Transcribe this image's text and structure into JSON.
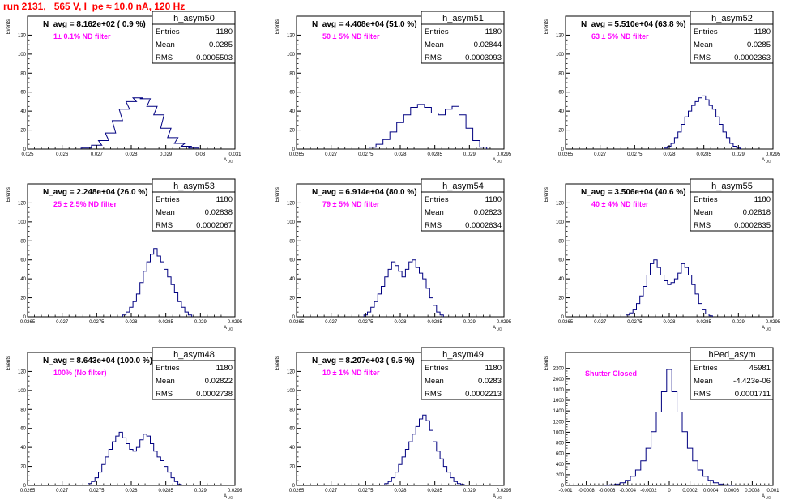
{
  "title": "run 2131,   565 V, I_pe ≈ 10.0 nA, 120 Hz",
  "ylabel": "Events",
  "xlabel": "A",
  "xlabel_sub": "UD",
  "chart_data": [
    {
      "type": "bar",
      "hist_name": "h_asym50",
      "navg": "N_avg = 8.162e+02 ( 0.9 %)",
      "filter": "1± 0.1% ND filter",
      "stats": [
        {
          "label": "Entries",
          "value": "1180"
        },
        {
          "label": "Mean",
          "value": "0.0285"
        },
        {
          "label": "RMS",
          "value": "0.0005503"
        }
      ],
      "xlim": [
        0.025,
        0.031
      ],
      "ylim": [
        0,
        140
      ],
      "xticks": [
        0.025,
        0.026,
        0.027,
        0.028,
        0.029,
        0.03,
        0.031
      ],
      "xtick_labels": [
        "0.025",
        "0.026",
        "0.027",
        "0.028",
        "0.029",
        "0.03",
        "0.031"
      ],
      "yticks": [
        0,
        20,
        40,
        60,
        80,
        100,
        120
      ],
      "ytick_labels": [
        "0",
        "20",
        "40",
        "60",
        "80",
        "100",
        "120"
      ],
      "x": [
        0.0267,
        0.027,
        0.0272,
        0.0274,
        0.0276,
        0.0278,
        0.028,
        0.0282,
        0.0284,
        0.0286,
        0.0288,
        0.029,
        0.0292,
        0.0294,
        0.0296,
        0.0298
      ],
      "values": [
        1,
        4,
        9,
        17,
        30,
        42,
        50,
        54,
        53,
        45,
        36,
        22,
        12,
        6,
        3,
        1
      ]
    },
    {
      "type": "bar",
      "hist_name": "h_asym51",
      "navg": "N_avg = 4.408e+04 (51.0 %)",
      "filter": "50 ± 5% ND filter",
      "stats": [
        {
          "label": "Entries",
          "value": "1180"
        },
        {
          "label": "Mean",
          "value": "0.02844"
        },
        {
          "label": "RMS",
          "value": "0.0003093"
        }
      ],
      "xlim": [
        0.0265,
        0.0295
      ],
      "ylim": [
        0,
        140
      ],
      "xticks": [
        0.0265,
        0.027,
        0.0275,
        0.028,
        0.0285,
        0.029,
        0.0295
      ],
      "xtick_labels": [
        "0.0265",
        "0.027",
        "0.0275",
        "0.028",
        "0.0285",
        "0.029",
        "0.0295"
      ],
      "yticks": [
        0,
        20,
        40,
        60,
        80,
        100,
        120
      ],
      "ytick_labels": [
        "0",
        "20",
        "40",
        "60",
        "80",
        "100",
        "120"
      ],
      "x": [
        0.0276,
        0.0277,
        0.0278,
        0.0279,
        0.028,
        0.0281,
        0.0282,
        0.0283,
        0.0284,
        0.0285,
        0.0286,
        0.0287,
        0.0288,
        0.0289,
        0.029,
        0.0291,
        0.0292
      ],
      "values": [
        2,
        5,
        10,
        18,
        28,
        36,
        44,
        47,
        44,
        38,
        36,
        42,
        45,
        36,
        22,
        9,
        2
      ]
    },
    {
      "type": "bar",
      "hist_name": "h_asym52",
      "navg": "N_avg = 5.510e+04 (63.8 %)",
      "filter": "63 ± 5% ND filter",
      "stats": [
        {
          "label": "Entries",
          "value": "1180"
        },
        {
          "label": "Mean",
          "value": "0.0285"
        },
        {
          "label": "RMS",
          "value": "0.0002363"
        }
      ],
      "xlim": [
        0.0265,
        0.0295
      ],
      "ylim": [
        0,
        140
      ],
      "xticks": [
        0.0265,
        0.027,
        0.0275,
        0.028,
        0.0285,
        0.029,
        0.0295
      ],
      "xtick_labels": [
        "0.0265",
        "0.027",
        "0.0275",
        "0.028",
        "0.0285",
        "0.029",
        "0.0295"
      ],
      "yticks": [
        0,
        20,
        40,
        60,
        80,
        100,
        120
      ],
      "ytick_labels": [
        "0",
        "20",
        "40",
        "60",
        "80",
        "100",
        "120"
      ],
      "x": [
        0.02795,
        0.028,
        0.02805,
        0.0281,
        0.02815,
        0.0282,
        0.02825,
        0.0283,
        0.02835,
        0.0284,
        0.02845,
        0.0285,
        0.02855,
        0.0286,
        0.02865,
        0.0287,
        0.02875,
        0.0288,
        0.02885,
        0.0289,
        0.02895,
        0.029
      ],
      "values": [
        1,
        3,
        6,
        12,
        18,
        26,
        34,
        40,
        46,
        50,
        54,
        56,
        52,
        46,
        42,
        34,
        26,
        18,
        12,
        6,
        3,
        1
      ]
    },
    {
      "type": "bar",
      "hist_name": "h_asym53",
      "navg": "N_avg = 2.248e+04 (26.0 %)",
      "filter": "25 ± 2.5% ND filter",
      "stats": [
        {
          "label": "Entries",
          "value": "1180"
        },
        {
          "label": "Mean",
          "value": "0.02838"
        },
        {
          "label": "RMS",
          "value": "0.0002067"
        }
      ],
      "xlim": [
        0.0265,
        0.0295
      ],
      "ylim": [
        0,
        140
      ],
      "xticks": [
        0.0265,
        0.027,
        0.0275,
        0.028,
        0.0285,
        0.029,
        0.0295
      ],
      "xtick_labels": [
        "0.0265",
        "0.027",
        "0.0275",
        "0.028",
        "0.0285",
        "0.029",
        "0.0295"
      ],
      "yticks": [
        0,
        20,
        40,
        60,
        80,
        100,
        120
      ],
      "ytick_labels": [
        "0",
        "20",
        "40",
        "60",
        "80",
        "100",
        "120"
      ],
      "x": [
        0.0279,
        0.02795,
        0.028,
        0.02805,
        0.0281,
        0.02815,
        0.0282,
        0.02825,
        0.0283,
        0.02835,
        0.0284,
        0.02845,
        0.0285,
        0.02855,
        0.0286,
        0.02865,
        0.0287,
        0.02875,
        0.0288,
        0.02885
      ],
      "values": [
        2,
        5,
        10,
        16,
        24,
        36,
        48,
        58,
        66,
        72,
        64,
        58,
        50,
        42,
        34,
        26,
        16,
        10,
        5,
        2
      ]
    },
    {
      "type": "bar",
      "hist_name": "h_asym54",
      "navg": "N_avg = 6.914e+04 (80.0 %)",
      "filter": "79 ± 5% ND filter",
      "stats": [
        {
          "label": "Entries",
          "value": "1180"
        },
        {
          "label": "Mean",
          "value": "0.02823"
        },
        {
          "label": "RMS",
          "value": "0.0002634"
        }
      ],
      "xlim": [
        0.0265,
        0.0295
      ],
      "ylim": [
        0,
        140
      ],
      "xticks": [
        0.0265,
        0.027,
        0.0275,
        0.028,
        0.0285,
        0.029,
        0.0295
      ],
      "xtick_labels": [
        "0.0265",
        "0.027",
        "0.0275",
        "0.028",
        "0.0285",
        "0.029",
        "0.0295"
      ],
      "yticks": [
        0,
        20,
        40,
        60,
        80,
        100,
        120
      ],
      "ytick_labels": [
        "0",
        "20",
        "40",
        "60",
        "80",
        "100",
        "120"
      ],
      "x": [
        0.0275,
        0.02755,
        0.0276,
        0.02765,
        0.0277,
        0.02775,
        0.0278,
        0.02785,
        0.0279,
        0.02795,
        0.028,
        0.02805,
        0.0281,
        0.02815,
        0.0282,
        0.02825,
        0.0283,
        0.02835,
        0.0284,
        0.02845,
        0.0285,
        0.02855,
        0.0286
      ],
      "values": [
        2,
        5,
        10,
        16,
        24,
        32,
        42,
        50,
        58,
        54,
        48,
        42,
        50,
        58,
        60,
        52,
        46,
        40,
        30,
        20,
        12,
        5,
        2
      ]
    },
    {
      "type": "bar",
      "hist_name": "h_asym55",
      "navg": "N_avg = 3.506e+04 (40.6 %)",
      "filter": "40 ± 4% ND filter",
      "stats": [
        {
          "label": "Entries",
          "value": "1180"
        },
        {
          "label": "Mean",
          "value": "0.02818"
        },
        {
          "label": "RMS",
          "value": "0.0002835"
        }
      ],
      "xlim": [
        0.0265,
        0.0295
      ],
      "ylim": [
        0,
        140
      ],
      "xticks": [
        0.0265,
        0.027,
        0.0275,
        0.028,
        0.0285,
        0.029,
        0.0295
      ],
      "xtick_labels": [
        "0.0265",
        "0.027",
        "0.0275",
        "0.028",
        "0.0285",
        "0.029",
        "0.0295"
      ],
      "yticks": [
        0,
        20,
        40,
        60,
        80,
        100,
        120
      ],
      "ytick_labels": [
        "0",
        "20",
        "40",
        "60",
        "80",
        "100",
        "120"
      ],
      "x": [
        0.0274,
        0.02745,
        0.0275,
        0.02755,
        0.0276,
        0.02765,
        0.0277,
        0.02775,
        0.0278,
        0.02785,
        0.0279,
        0.02795,
        0.028,
        0.02805,
        0.0281,
        0.02815,
        0.0282,
        0.02825,
        0.0283,
        0.02835,
        0.0284,
        0.02845,
        0.0285,
        0.02855,
        0.0286
      ],
      "values": [
        2,
        4,
        8,
        14,
        22,
        32,
        44,
        56,
        60,
        52,
        44,
        38,
        34,
        36,
        40,
        46,
        56,
        52,
        44,
        34,
        24,
        14,
        8,
        3,
        1
      ]
    },
    {
      "type": "bar",
      "hist_name": "h_asym48",
      "navg": "N_avg = 8.643e+04 (100.0 %)",
      "filter": "100% (No filter)",
      "stats": [
        {
          "label": "Entries",
          "value": "1180"
        },
        {
          "label": "Mean",
          "value": "0.02822"
        },
        {
          "label": "RMS",
          "value": "0.0002738"
        }
      ],
      "xlim": [
        0.0265,
        0.0295
      ],
      "ylim": [
        0,
        140
      ],
      "xticks": [
        0.0265,
        0.027,
        0.0275,
        0.028,
        0.0285,
        0.029,
        0.0295
      ],
      "xtick_labels": [
        "0.0265",
        "0.027",
        "0.0275",
        "0.028",
        "0.0285",
        "0.029",
        "0.0295"
      ],
      "yticks": [
        0,
        20,
        40,
        60,
        80,
        100,
        120
      ],
      "ytick_labels": [
        "0",
        "20",
        "40",
        "60",
        "80",
        "100",
        "120"
      ],
      "x": [
        0.0274,
        0.02745,
        0.0275,
        0.02755,
        0.0276,
        0.02765,
        0.0277,
        0.02775,
        0.0278,
        0.02785,
        0.0279,
        0.02795,
        0.028,
        0.02805,
        0.0281,
        0.02815,
        0.0282,
        0.02825,
        0.0283,
        0.02835,
        0.0284,
        0.02845,
        0.0285,
        0.02855,
        0.0286,
        0.02865,
        0.0287
      ],
      "values": [
        2,
        4,
        8,
        14,
        22,
        30,
        38,
        46,
        52,
        56,
        50,
        44,
        38,
        36,
        40,
        48,
        54,
        52,
        44,
        36,
        30,
        26,
        20,
        14,
        8,
        4,
        1
      ]
    },
    {
      "type": "bar",
      "hist_name": "h_asym49",
      "navg": "N_avg = 8.207e+03 ( 9.5 %)",
      "filter": "10 ± 1% ND filter",
      "stats": [
        {
          "label": "Entries",
          "value": "1180"
        },
        {
          "label": "Mean",
          "value": "0.0283"
        },
        {
          "label": "RMS",
          "value": "0.0002213"
        }
      ],
      "xlim": [
        0.0265,
        0.0295
      ],
      "ylim": [
        0,
        140
      ],
      "xticks": [
        0.0265,
        0.027,
        0.0275,
        0.028,
        0.0285,
        0.029,
        0.0295
      ],
      "xtick_labels": [
        "0.0265",
        "0.027",
        "0.0275",
        "0.028",
        "0.0285",
        "0.029",
        "0.0295"
      ],
      "yticks": [
        0,
        20,
        40,
        60,
        80,
        100,
        120
      ],
      "ytick_labels": [
        "0",
        "20",
        "40",
        "60",
        "80",
        "100",
        "120"
      ],
      "x": [
        0.0278,
        0.02785,
        0.0279,
        0.02795,
        0.028,
        0.02805,
        0.0281,
        0.02815,
        0.0282,
        0.02825,
        0.0283,
        0.02835,
        0.0284,
        0.02845,
        0.0285,
        0.02855,
        0.0286,
        0.02865,
        0.0287,
        0.02875,
        0.0288,
        0.02885,
        0.0289
      ],
      "values": [
        2,
        4,
        8,
        14,
        22,
        30,
        38,
        46,
        54,
        62,
        70,
        74,
        68,
        58,
        46,
        36,
        28,
        20,
        14,
        8,
        4,
        2,
        1
      ]
    },
    {
      "type": "bar",
      "hist_name": "hPed_asym",
      "navg": "",
      "filter": "Shutter Closed",
      "stats": [
        {
          "label": "Entries",
          "value": "45981"
        },
        {
          "label": "Mean",
          "value": "-4.423e-06"
        },
        {
          "label": "RMS",
          "value": "0.0001711"
        }
      ],
      "xlim": [
        -0.001,
        0.001
      ],
      "ylim": [
        0,
        2500
      ],
      "xticks": [
        -0.001,
        -0.0008,
        -0.0006,
        -0.0004,
        -0.0002,
        0,
        0.0002,
        0.0004,
        0.0006,
        0.0008,
        0.001
      ],
      "xtick_labels": [
        "-0.001",
        "-0.0008",
        "-0.0006",
        "-0.0004",
        "-0.0002",
        "0",
        "0.0002",
        "0.0004",
        "0.0006",
        "0.0008",
        "0.001"
      ],
      "yticks": [
        0,
        200,
        400,
        600,
        800,
        1000,
        1200,
        1400,
        1600,
        1800,
        2000,
        2200
      ],
      "ytick_labels": [
        "0",
        "200",
        "400",
        "600",
        "800",
        "1000",
        "1200",
        "1400",
        "1600",
        "1800",
        "2000",
        "2200"
      ],
      "x": [
        -0.0006,
        -0.00055,
        -0.0005,
        -0.00045,
        -0.0004,
        -0.00035,
        -0.0003,
        -0.00025,
        -0.0002,
        -0.00015,
        -0.0001,
        -5e-05,
        0,
        5e-05,
        0.0001,
        0.00015,
        0.0002,
        0.00025,
        0.0003,
        0.00035,
        0.0004,
        0.00045,
        0.0005,
        0.00055,
        0.0006
      ],
      "values": [
        5,
        12,
        25,
        50,
        95,
        170,
        290,
        460,
        700,
        1010,
        1380,
        1760,
        2180,
        1760,
        1380,
        1010,
        700,
        460,
        290,
        170,
        95,
        50,
        25,
        12,
        5
      ]
    }
  ]
}
